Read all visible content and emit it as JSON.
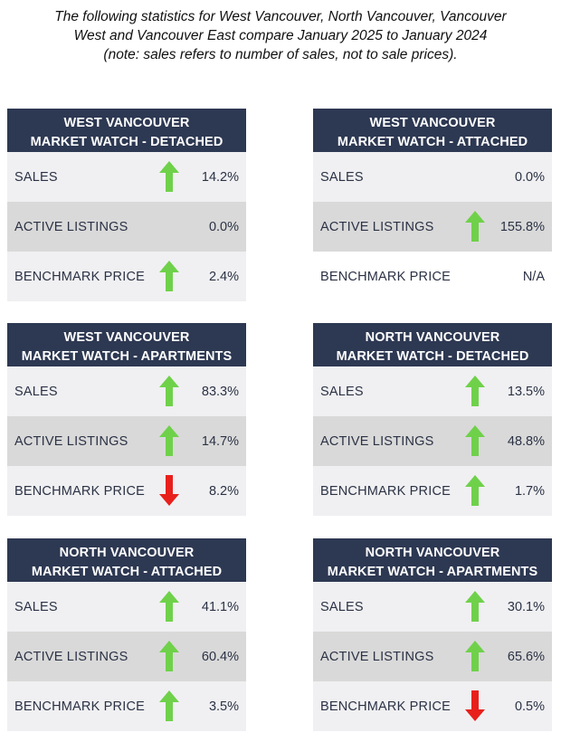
{
  "intro": {
    "line1": "The following statistics for West Vancouver, North Vancouver, Vancouver",
    "line2": "West and Vancouver East compare January 2025 to January 2024",
    "line3": "(note: sales refers to number of sales, not to sale prices)."
  },
  "colors": {
    "header_bg": "#2d3852",
    "up_arrow": "#6fd14a",
    "down_arrow": "#e8201c"
  },
  "panels": [
    {
      "title1": "WEST VANCOUVER",
      "title2": "MARKET WATCH - DETACHED",
      "rows": [
        {
          "label": "SALES",
          "value": "14.2%",
          "trend": "up"
        },
        {
          "label": "ACTIVE LISTINGS",
          "value": "0.0%",
          "trend": "none"
        },
        {
          "label": "BENCHMARK PRICE",
          "value": "2.4%",
          "trend": "up"
        }
      ]
    },
    {
      "title1": "WEST VANCOUVER",
      "title2": "MARKET WATCH - ATTACHED",
      "rows": [
        {
          "label": "SALES",
          "value": "0.0%",
          "trend": "none"
        },
        {
          "label": "ACTIVE LISTINGS",
          "value": "155.8%",
          "trend": "up"
        },
        {
          "label": "BENCHMARK PRICE",
          "value": "N/A",
          "trend": "none"
        }
      ]
    },
    {
      "title1": "WEST VANCOUVER",
      "title2": "MARKET WATCH - APARTMENTS",
      "rows": [
        {
          "label": "SALES",
          "value": "83.3%",
          "trend": "up"
        },
        {
          "label": "ACTIVE LISTINGS",
          "value": "14.7%",
          "trend": "up"
        },
        {
          "label": "BENCHMARK PRICE",
          "value": "8.2%",
          "trend": "down"
        }
      ]
    },
    {
      "title1": "NORTH VANCOUVER",
      "title2": "MARKET WATCH - DETACHED",
      "rows": [
        {
          "label": "SALES",
          "value": "13.5%",
          "trend": "up"
        },
        {
          "label": "ACTIVE LISTINGS",
          "value": "48.8%",
          "trend": "up"
        },
        {
          "label": "BENCHMARK PRICE",
          "value": "1.7%",
          "trend": "up"
        }
      ]
    },
    {
      "title1": "NORTH VANCOUVER",
      "title2": "MARKET WATCH - ATTACHED",
      "rows": [
        {
          "label": "SALES",
          "value": "41.1%",
          "trend": "up"
        },
        {
          "label": "ACTIVE LISTINGS",
          "value": "60.4%",
          "trend": "up"
        },
        {
          "label": "BENCHMARK PRICE",
          "value": "3.5%",
          "trend": "up"
        }
      ]
    },
    {
      "title1": "NORTH VANCOUVER",
      "title2": "MARKET WATCH - APARTMENTS",
      "rows": [
        {
          "label": "SALES",
          "value": "30.1%",
          "trend": "up"
        },
        {
          "label": "ACTIVE LISTINGS",
          "value": "65.6%",
          "trend": "up"
        },
        {
          "label": "BENCHMARK PRICE",
          "value": "0.5%",
          "trend": "down"
        }
      ]
    }
  ]
}
